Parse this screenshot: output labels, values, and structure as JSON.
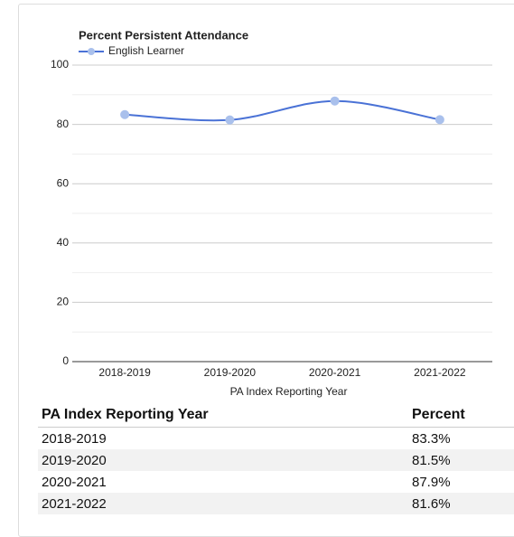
{
  "chart_data": {
    "type": "line",
    "title": "Percent Persistent Attendance",
    "x_label": "PA Index Reporting Year",
    "categories": [
      "2018-2019",
      "2019-2020",
      "2020-2021",
      "2021-2022"
    ],
    "series": [
      {
        "name": "English Learner",
        "color": "#4a72d6",
        "values": [
          83.3,
          81.5,
          87.9,
          81.6
        ]
      }
    ],
    "ylim": [
      0,
      100
    ],
    "yticks": [
      0,
      20,
      40,
      60,
      80,
      100
    ],
    "minor_yticks": [
      10,
      30,
      50,
      70,
      90
    ],
    "grid": true
  },
  "table": {
    "header": [
      "PA Index Reporting Year",
      "Percent"
    ],
    "rows": [
      [
        "2018-2019",
        "83.3%"
      ],
      [
        "2019-2020",
        "81.5%"
      ],
      [
        "2020-2021",
        "87.9%"
      ],
      [
        "2021-2022",
        "81.6%"
      ]
    ]
  }
}
